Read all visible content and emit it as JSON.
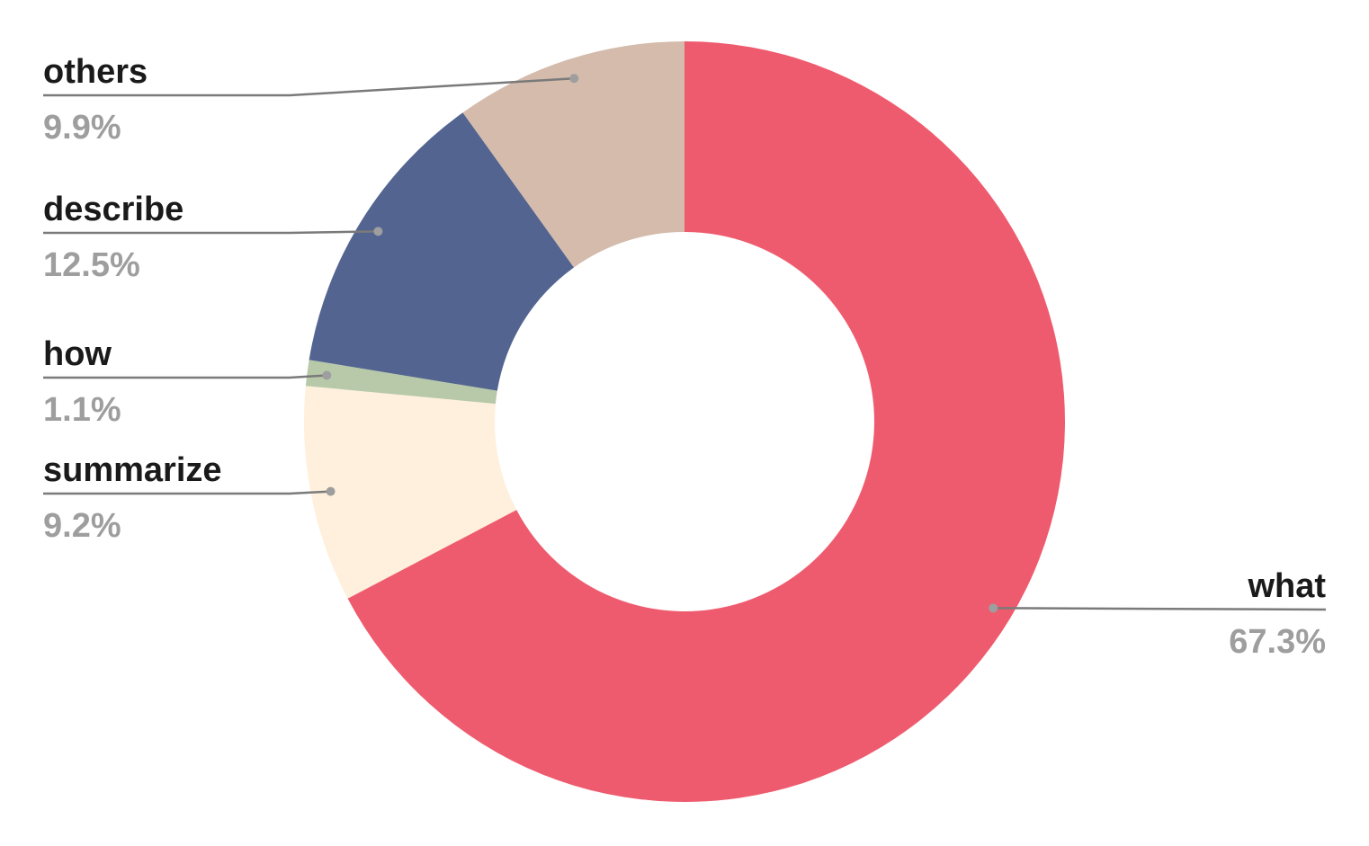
{
  "chart_data": {
    "type": "donut",
    "categories": [
      "what",
      "summarize",
      "how",
      "describe",
      "others"
    ],
    "values": [
      67.3,
      9.2,
      1.1,
      12.5,
      9.9
    ],
    "value_labels": [
      "67.3%",
      "9.2%",
      "1.1%",
      "12.5%",
      "9.9%"
    ],
    "colors": [
      "#ef5b6e",
      "#fef0dc",
      "#b7c9a8",
      "#536490",
      "#d4bbab"
    ]
  }
}
